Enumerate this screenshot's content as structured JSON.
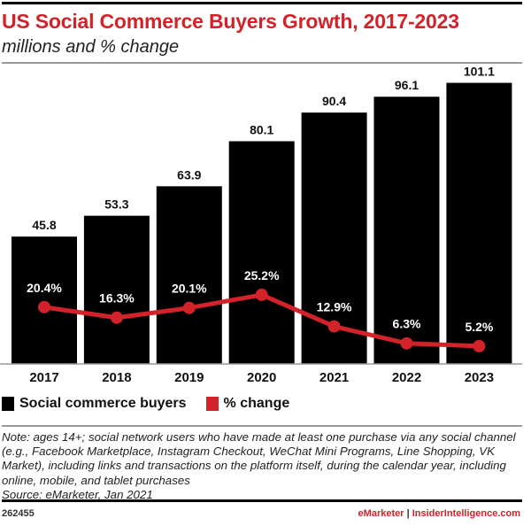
{
  "chart_data": {
    "type": "bar",
    "title": "US Social Commerce Buyers Growth, 2017-2023",
    "subtitle": "millions and % change",
    "categories": [
      "2017",
      "2018",
      "2019",
      "2020",
      "2021",
      "2022",
      "2023"
    ],
    "series": [
      {
        "name": "Social commerce buyers",
        "type": "bar",
        "color": "#000000",
        "values": [
          45.8,
          53.3,
          63.9,
          80.1,
          90.4,
          96.1,
          101.1
        ],
        "labels": [
          "45.8",
          "53.3",
          "63.9",
          "80.1",
          "90.4",
          "96.1",
          "101.1"
        ]
      },
      {
        "name": "% change",
        "type": "line",
        "color": "#d2232a",
        "values": [
          20.4,
          16.3,
          20.1,
          25.2,
          12.9,
          6.3,
          5.2
        ],
        "labels": [
          "20.4%",
          "16.3%",
          "20.1%",
          "25.2%",
          "12.9%",
          "6.3%",
          "5.2%"
        ]
      }
    ],
    "grid": false,
    "legend": "bottom-left"
  },
  "note": "Note: ages 14+; social network users who have made at least one purchase via any social channel (e.g., Facebook Marketplace, Instagram Checkout, WeChat Mini Programs, Line Shopping, VK Market), including links and transactions on the platform itself, during the calendar year, including online, mobile, and tablet purchases",
  "source": "Source: eMarketer, Jan 2021",
  "footer": {
    "id": "262455",
    "brand1": "eMarketer",
    "separator": " | ",
    "brand2": "InsiderIntelligence.com"
  }
}
